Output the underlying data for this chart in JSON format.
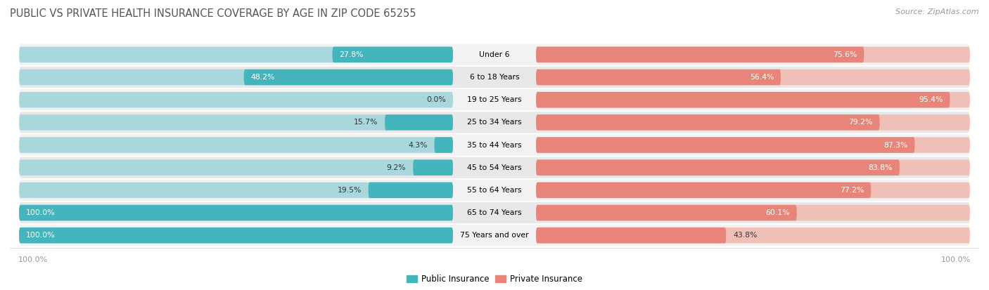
{
  "title": "PUBLIC VS PRIVATE HEALTH INSURANCE COVERAGE BY AGE IN ZIP CODE 65255",
  "source": "Source: ZipAtlas.com",
  "categories": [
    "Under 6",
    "6 to 18 Years",
    "19 to 25 Years",
    "25 to 34 Years",
    "35 to 44 Years",
    "45 to 54 Years",
    "55 to 64 Years",
    "65 to 74 Years",
    "75 Years and over"
  ],
  "public_values": [
    27.8,
    48.2,
    0.0,
    15.7,
    4.3,
    9.2,
    19.5,
    100.0,
    100.0
  ],
  "private_values": [
    75.6,
    56.4,
    95.4,
    79.2,
    87.3,
    83.8,
    77.2,
    60.1,
    43.8
  ],
  "public_color": "#45b5bd",
  "private_color": "#e8857a",
  "public_color_light": "#a8d8db",
  "private_color_light": "#f0c0b8",
  "row_bg_odd": "#f2f2f2",
  "row_bg_even": "#e8e8e8",
  "title_color": "#555555",
  "label_color_dark": "#333333",
  "source_color": "#999999",
  "tick_color": "#999999",
  "public_label": "Public Insurance",
  "private_label": "Private Insurance",
  "figsize": [
    14.06,
    4.13
  ],
  "dpi": 100,
  "white_label_threshold_public": 25,
  "white_label_threshold_private": 50
}
